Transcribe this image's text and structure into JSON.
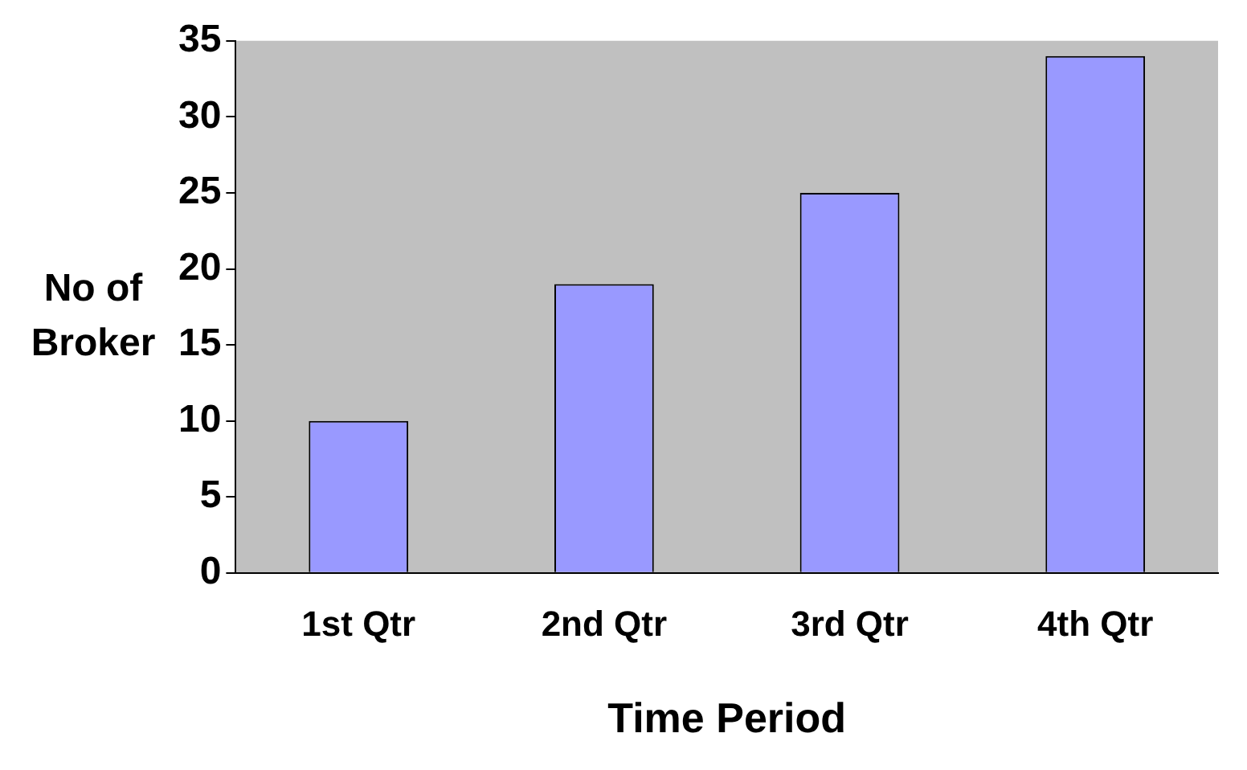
{
  "chart_data": {
    "type": "bar",
    "xlabel": "Time Period",
    "ylabel": "No of Broker",
    "categories": [
      "1st Qtr",
      "2nd Qtr",
      "3rd Qtr",
      "4th Qtr"
    ],
    "values": [
      10,
      19,
      25,
      34
    ],
    "color": "#9999ff",
    "ylim": [
      0,
      35
    ],
    "yticks": [
      0,
      5,
      10,
      15,
      20,
      25,
      30,
      35
    ],
    "grid": false,
    "legend": false
  }
}
